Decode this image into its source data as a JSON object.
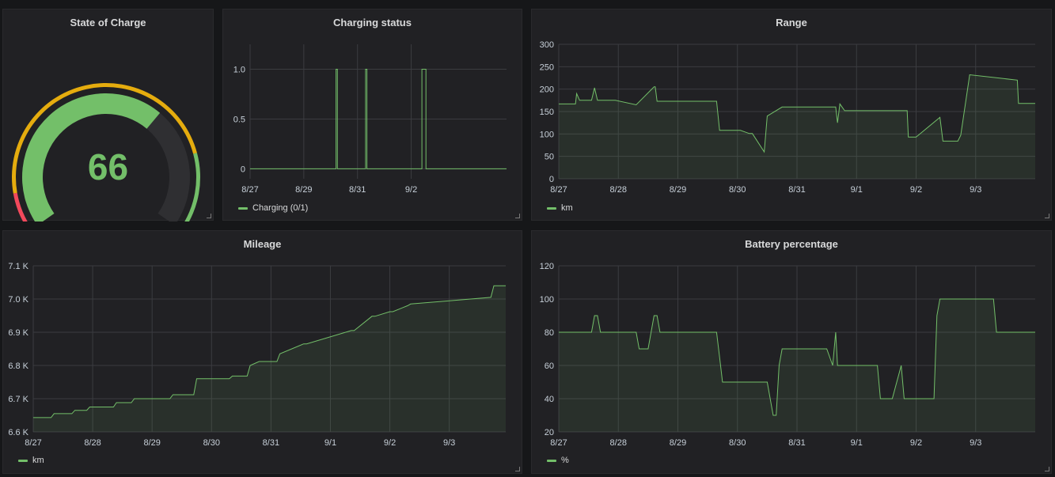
{
  "colors": {
    "series": "#73bf69",
    "gauge_red": "#f2495c",
    "gauge_yellow": "#fade2a",
    "gauge_orange": "#e5ac0e",
    "grid": "#3b3c40",
    "axis_text": "#c7d0d9"
  },
  "icons": {
    "resize": "resize-corner-icon"
  },
  "panels": {
    "soc": {
      "title": "State of Charge",
      "value": "66"
    },
    "charging": {
      "title": "Charging status",
      "legend": "Charging (0/1)"
    },
    "range": {
      "title": "Range",
      "legend": "km"
    },
    "mileage": {
      "title": "Mileage",
      "legend": "km"
    },
    "battery": {
      "title": "Battery percentage",
      "legend": "%"
    }
  },
  "chart_data": [
    {
      "id": "soc",
      "type": "gauge",
      "title": "State of Charge",
      "value": 66,
      "min": 0,
      "max": 100,
      "thresholds": [
        {
          "from": 0,
          "to": 10,
          "color": "#f2495c"
        },
        {
          "from": 10,
          "to": 80,
          "color": "#e5ac0e"
        },
        {
          "from": 80,
          "to": 100,
          "color": "#73bf69"
        }
      ]
    },
    {
      "id": "charging",
      "type": "line",
      "title": "Charging status",
      "x_ticks": [
        "8/27",
        "8/29",
        "8/31",
        "9/2"
      ],
      "y_ticks": [
        "0",
        "0.5",
        "1.0"
      ],
      "xlim": [
        8.27,
        10.18
      ],
      "ylim": [
        -0.1,
        1.25
      ],
      "series": [
        {
          "name": "Charging (0/1)",
          "x": [
            8.27,
            8.91,
            8.91,
            8.92,
            8.92,
            9.13,
            9.13,
            9.14,
            9.14,
            9.55,
            9.55,
            9.58,
            9.58,
            10.18
          ],
          "y": [
            0,
            0,
            1,
            1,
            0,
            0,
            1,
            1,
            0,
            0,
            1,
            1,
            0,
            0
          ]
        }
      ]
    },
    {
      "id": "range",
      "type": "area",
      "title": "Range",
      "x_ticks": [
        "8/27",
        "8/28",
        "8/29",
        "8/30",
        "8/31",
        "9/1",
        "9/2",
        "9/3"
      ],
      "y_ticks": [
        "0",
        "50",
        "100",
        "150",
        "200",
        "250",
        "300"
      ],
      "xlim": [
        0,
        8.0
      ],
      "ylim": [
        0,
        300
      ],
      "series": [
        {
          "name": "km",
          "x": [
            0,
            0.28,
            0.3,
            0.35,
            0.55,
            0.6,
            0.65,
            0.9,
            0.95,
            1.3,
            1.6,
            1.62,
            1.65,
            2.3,
            2.65,
            2.7,
            3.05,
            3.2,
            3.25,
            3.45,
            3.5,
            3.75,
            3.85,
            4.65,
            4.68,
            4.72,
            4.8,
            5.85,
            5.87,
            5.95,
            6.0,
            6.4,
            6.45,
            6.5,
            6.7,
            6.75,
            6.9,
            7.7,
            7.72,
            8.0
          ],
          "y": [
            167,
            167,
            190,
            175,
            175,
            203,
            175,
            175,
            175,
            165,
            205,
            205,
            173,
            173,
            173,
            108,
            108,
            101,
            101,
            60,
            140,
            160,
            160,
            160,
            125,
            167,
            152,
            152,
            93,
            93,
            93,
            137,
            84,
            84,
            84,
            97,
            232,
            220,
            168,
            168
          ]
        }
      ]
    },
    {
      "id": "mileage",
      "type": "area",
      "title": "Mileage",
      "x_ticks": [
        "8/27",
        "8/28",
        "8/29",
        "8/30",
        "8/31",
        "9/1",
        "9/2",
        "9/3"
      ],
      "y_ticks": [
        "6.6 K",
        "6.7 K",
        "6.8 K",
        "6.9 K",
        "7.0 K",
        "7.1 K"
      ],
      "xlim": [
        0,
        7.95
      ],
      "ylim": [
        6600,
        7100
      ],
      "series": [
        {
          "name": "km",
          "x": [
            0,
            0.3,
            0.35,
            0.65,
            0.7,
            0.9,
            0.95,
            1.35,
            1.4,
            1.65,
            1.7,
            2.3,
            2.35,
            2.7,
            2.75,
            3.3,
            3.35,
            3.6,
            3.65,
            3.8,
            3.85,
            4.1,
            4.15,
            4.55,
            4.6,
            5.35,
            5.4,
            5.7,
            5.75,
            6.0,
            6.05,
            6.3,
            6.35,
            7.7,
            7.75,
            7.95
          ],
          "y": [
            6643,
            6643,
            6655,
            6655,
            6665,
            6665,
            6675,
            6675,
            6688,
            6688,
            6700,
            6700,
            6712,
            6712,
            6760,
            6760,
            6768,
            6768,
            6800,
            6812,
            6812,
            6812,
            6835,
            6865,
            6865,
            6905,
            6905,
            6948,
            6948,
            6962,
            6962,
            6980,
            6985,
            7005,
            7040,
            7040
          ]
        }
      ]
    },
    {
      "id": "battery",
      "type": "area",
      "title": "Battery percentage",
      "x_ticks": [
        "8/27",
        "8/28",
        "8/29",
        "8/30",
        "8/31",
        "9/1",
        "9/2",
        "9/3"
      ],
      "y_ticks": [
        "20",
        "40",
        "60",
        "80",
        "100",
        "120"
      ],
      "xlim": [
        0,
        8.0
      ],
      "ylim": [
        20,
        120
      ],
      "series": [
        {
          "name": "%",
          "x": [
            0,
            0.55,
            0.6,
            0.65,
            0.7,
            1.3,
            1.35,
            1.5,
            1.6,
            1.65,
            1.7,
            2.65,
            2.7,
            2.75,
            3.05,
            3.5,
            3.6,
            3.65,
            3.7,
            3.75,
            4.5,
            4.6,
            4.65,
            4.68,
            4.72,
            5.35,
            5.4,
            5.6,
            5.75,
            5.8,
            6.3,
            6.35,
            6.4,
            7.3,
            7.35,
            7.5,
            8.0
          ],
          "y": [
            80,
            80,
            90,
            90,
            80,
            80,
            70,
            70,
            90,
            90,
            80,
            80,
            65,
            50,
            50,
            50,
            30,
            30,
            60,
            70,
            70,
            60,
            80,
            60,
            60,
            60,
            40,
            40,
            60,
            40,
            40,
            90,
            100,
            100,
            80,
            80,
            80
          ]
        }
      ]
    }
  ]
}
